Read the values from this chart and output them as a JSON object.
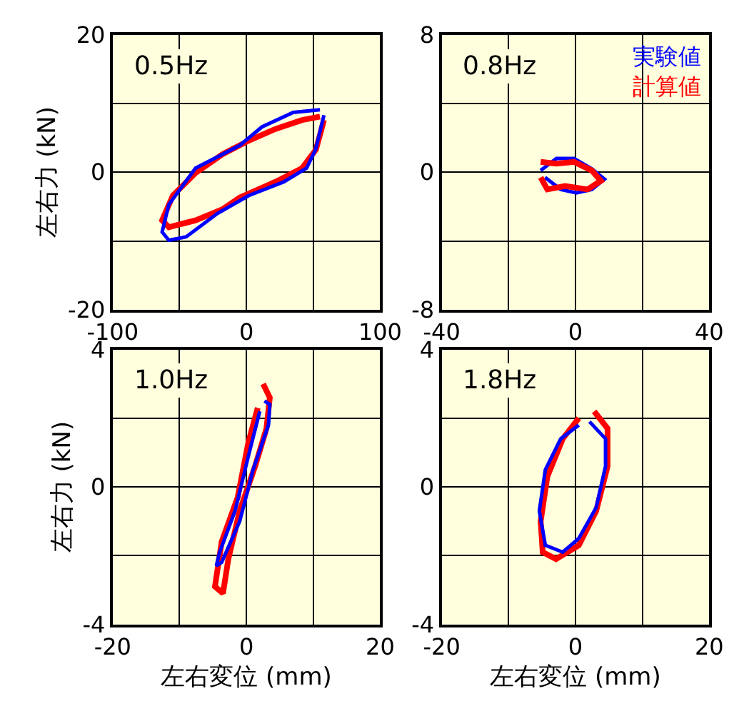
{
  "chart_data": [
    {
      "type": "line",
      "annotations": [
        "0.5Hz"
      ],
      "ylabel": "左右力 (kN)",
      "xlim": [
        -100,
        100
      ],
      "ylim": [
        -20,
        20
      ],
      "grid": true,
      "xticks": [
        -100,
        {
          "value": -50,
          "label": null
        },
        0,
        {
          "value": 50,
          "label": null
        },
        100
      ],
      "yticks": [
        -20,
        {
          "value": -10,
          "label": null
        },
        0,
        {
          "value": 10,
          "label": null
        },
        20
      ],
      "series": [
        {
          "color": "#ff0000",
          "x": [
            58,
            52,
            41.7,
            21.7,
            -5,
            -18,
            -38,
            -58,
            -63,
            -55,
            -38,
            -18,
            1.7,
            21.7,
            41.7,
            55
          ],
          "values": [
            7.6,
            3.3,
            0.6,
            -1.4,
            -3.7,
            -5.4,
            -7,
            -8,
            -7,
            -3.4,
            -0.1,
            2.6,
            4.6,
            6.3,
            7.6,
            8.1
          ]
        },
        {
          "color": "#0000ff",
          "x": [
            58,
            51.7,
            45,
            28,
            1.7,
            -21.7,
            -45,
            -58,
            -63,
            -58,
            -38,
            -18,
            -5,
            11.7,
            35,
            55
          ],
          "values": [
            8.3,
            3.3,
            0.6,
            -1.4,
            -3.4,
            -6,
            -9.4,
            -9.9,
            -8.7,
            -4.7,
            0.6,
            2.6,
            3.9,
            6.6,
            8.7,
            9.1
          ]
        }
      ]
    },
    {
      "type": "line",
      "annotations": [
        "0.8Hz"
      ],
      "xlim": [
        -40,
        40
      ],
      "ylim": [
        -8,
        8
      ],
      "grid": true,
      "xticks": [
        -40,
        {
          "value": -20,
          "label": null
        },
        0,
        {
          "value": 20,
          "label": null
        },
        40
      ],
      "yticks": [
        -8,
        {
          "value": -4,
          "label": null
        },
        0,
        {
          "value": 4,
          "label": null
        },
        8
      ],
      "series": [
        {
          "name": "実験値",
          "color": "#0000ff",
          "x": [
            -10.4,
            -5.7,
            -0.4,
            4.9,
            8.7,
            4.9,
            0.3,
            -4.4,
            -9.1
          ],
          "values": [
            0.1,
            0.8,
            0.8,
            0.2,
            -0.4,
            -1.0,
            -1.2,
            -1.0,
            -0.3
          ]
        },
        {
          "name": "計算値",
          "color": "#ff0000",
          "x": [
            -10.4,
            -5.7,
            -0.4,
            4.9,
            7.6,
            3.6,
            -3.1,
            -8.4,
            -10.4
          ],
          "values": [
            0.6,
            0.5,
            0.6,
            0.1,
            -0.5,
            -1.0,
            -0.8,
            -1.0,
            -0.3
          ]
        }
      ]
    },
    {
      "type": "line",
      "annotations": [
        "1.0Hz"
      ],
      "xlabel": "左右変位 (mm)",
      "ylabel": "左右力 (kN)",
      "xlim": [
        -20,
        20
      ],
      "ylim": [
        -4,
        4
      ],
      "grid": true,
      "xticks": [
        -20,
        {
          "value": -10,
          "label": null
        },
        0,
        {
          "value": 10,
          "label": null
        },
        20
      ],
      "yticks": [
        -4,
        {
          "value": -2,
          "label": null
        },
        0,
        {
          "value": 2,
          "label": null
        },
        4
      ],
      "series": [
        {
          "color": "#ff0000",
          "x": [
            2.5,
            3.5,
            3,
            1.3,
            -1,
            -2.7,
            -3.5,
            -4.7,
            -3.7,
            -1.3,
            0.3,
            1.7
          ],
          "values": [
            3.0,
            2.6,
            1.7,
            0.6,
            -0.7,
            -2.1,
            -3.1,
            -2.9,
            -1.6,
            -0.3,
            1.3,
            2.3
          ]
        },
        {
          "color": "#0000ff",
          "x": [
            2.7,
            3.5,
            3.3,
            1,
            -1,
            -3.7,
            -4.5,
            -4,
            -1.7,
            0.3,
            2
          ],
          "values": [
            2.5,
            2.4,
            1.8,
            0.5,
            -1.0,
            -2.2,
            -2.3,
            -1.9,
            -0.7,
            0.9,
            2.2
          ]
        }
      ]
    },
    {
      "type": "line",
      "annotations": [
        "1.8Hz"
      ],
      "xlabel": "左右変位 (mm)",
      "xlim": [
        -20,
        20
      ],
      "ylim": [
        -4,
        4
      ],
      "grid": true,
      "xticks": [
        -20,
        {
          "value": -10,
          "label": null
        },
        0,
        {
          "value": 10,
          "label": null
        },
        20
      ],
      "yticks": [
        -4,
        {
          "value": -2,
          "label": null
        },
        0,
        {
          "value": 2,
          "label": null
        },
        4
      ],
      "series": [
        {
          "color": "#ff0000",
          "x": [
            2.8,
            4.8,
            4.8,
            3.1,
            0.5,
            -2.9,
            -4.9,
            -5.2,
            -4.2,
            -1.9,
            0.5
          ],
          "values": [
            2.2,
            1.7,
            0.6,
            -0.7,
            -1.7,
            -2.1,
            -1.9,
            -1.0,
            0.3,
            1.4,
            2.0
          ]
        },
        {
          "color": "#0000ff",
          "x": [
            2.1,
            4.5,
            4.5,
            3.1,
            0.5,
            -1.9,
            -4.5,
            -5.4,
            -4.5,
            -2.2,
            0.5
          ],
          "values": [
            1.9,
            1.4,
            0.6,
            -0.6,
            -1.5,
            -1.9,
            -1.7,
            -0.7,
            0.5,
            1.4,
            1.8
          ]
        }
      ]
    }
  ]
}
